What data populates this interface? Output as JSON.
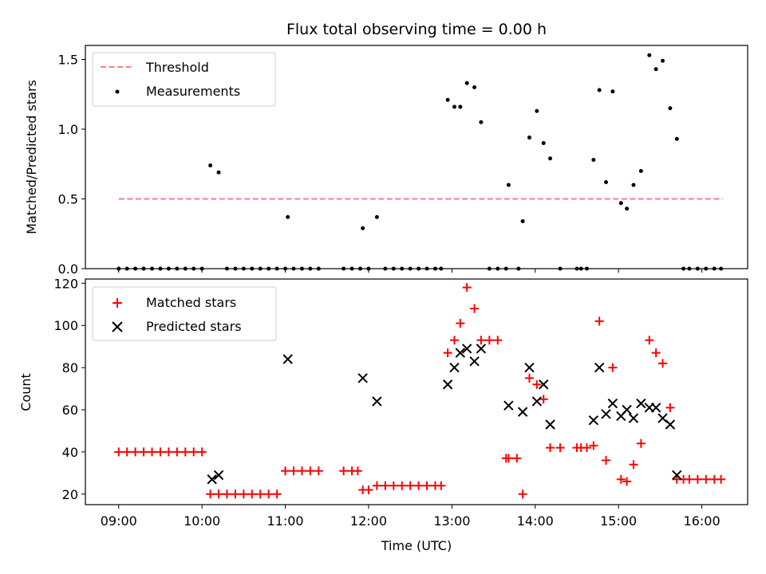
{
  "chart_data": [
    {
      "type": "scatter",
      "title": "Flux total observing time = 0.00 h",
      "xlabel": "",
      "ylabel": "Matched/Predicted stars",
      "xlim": [
        8.6,
        16.55
      ],
      "ylim": [
        0,
        1.6
      ],
      "yticks": [
        0.0,
        0.5,
        1.0,
        1.5
      ],
      "ytick_labels": [
        "0.0",
        "0.5",
        "1.0",
        "1.5"
      ],
      "legend_position": "top-left",
      "grid": false,
      "threshold": {
        "name": "Threshold",
        "value": 0.5,
        "x": [
          9.0,
          16.25
        ],
        "color": "#ff7f7f"
      },
      "series": [
        {
          "name": "Measurements",
          "color": "#000000",
          "marker": "dot",
          "x": [
            9.0,
            9.1,
            9.2,
            9.3,
            9.4,
            9.5,
            9.6,
            9.7,
            9.8,
            9.9,
            10.0,
            10.1,
            10.2,
            10.3,
            10.4,
            10.5,
            10.6,
            10.7,
            10.8,
            10.9,
            11.0,
            11.03,
            11.1,
            11.2,
            11.3,
            11.4,
            11.7,
            11.8,
            11.9,
            11.93,
            12.0,
            12.1,
            12.2,
            12.3,
            12.4,
            12.5,
            12.6,
            12.7,
            12.8,
            12.87,
            12.95,
            13.03,
            13.1,
            13.18,
            13.27,
            13.35,
            13.45,
            13.55,
            13.65,
            13.68,
            13.8,
            13.85,
            13.93,
            14.02,
            14.1,
            14.18,
            14.3,
            14.5,
            14.55,
            14.62,
            14.7,
            14.77,
            14.85,
            14.93,
            15.03,
            15.1,
            15.18,
            15.27,
            15.37,
            15.45,
            15.53,
            15.62,
            15.7,
            15.78,
            15.85,
            15.95,
            16.05,
            16.15,
            16.23
          ],
          "y": [
            0,
            0,
            0,
            0,
            0,
            0,
            0,
            0,
            0,
            0,
            0,
            0.74,
            0.69,
            0,
            0,
            0,
            0,
            0,
            0,
            0,
            0,
            0.37,
            0,
            0,
            0,
            0,
            0,
            0,
            0,
            0.29,
            0,
            0.37,
            0,
            0,
            0,
            0,
            0,
            0,
            0,
            0,
            1.21,
            1.16,
            1.16,
            1.33,
            1.3,
            1.05,
            0,
            0,
            0,
            0.6,
            0,
            0.34,
            0.94,
            1.13,
            0.9,
            0.79,
            0,
            0,
            0,
            0,
            0.78,
            1.28,
            0.62,
            1.27,
            0.47,
            0.43,
            0.6,
            0.7,
            1.53,
            1.43,
            1.49,
            1.15,
            0.93,
            0,
            0,
            0,
            0,
            0,
            0
          ]
        }
      ]
    },
    {
      "type": "scatter",
      "title": "",
      "xlabel": "Time (UTC)",
      "ylabel": "Count",
      "xlim": [
        8.6,
        16.55
      ],
      "ylim": [
        15,
        122
      ],
      "yticks": [
        20,
        40,
        60,
        80,
        100,
        120
      ],
      "ytick_labels": [
        "20",
        "40",
        "60",
        "80",
        "100",
        "120"
      ],
      "xticks": [
        9,
        10,
        11,
        12,
        13,
        14,
        15,
        16
      ],
      "xtick_labels": [
        "09:00",
        "10:00",
        "11:00",
        "12:00",
        "13:00",
        "14:00",
        "15:00",
        "16:00"
      ],
      "legend_position": "top-left",
      "grid": false,
      "series": [
        {
          "name": "Matched stars",
          "color": "#ff0000",
          "marker": "plus",
          "x": [
            9.0,
            9.1,
            9.2,
            9.3,
            9.4,
            9.5,
            9.6,
            9.7,
            9.8,
            9.9,
            10.0,
            10.1,
            10.2,
            10.3,
            10.4,
            10.5,
            10.6,
            10.7,
            10.8,
            10.9,
            11.0,
            11.1,
            11.2,
            11.3,
            11.4,
            11.7,
            11.8,
            11.87,
            11.93,
            12.0,
            12.1,
            12.2,
            12.3,
            12.4,
            12.5,
            12.6,
            12.7,
            12.8,
            12.87,
            12.95,
            13.03,
            13.1,
            13.18,
            13.27,
            13.35,
            13.45,
            13.55,
            13.65,
            13.68,
            13.78,
            13.85,
            13.93,
            14.02,
            14.1,
            14.18,
            14.3,
            14.5,
            14.55,
            14.62,
            14.7,
            14.77,
            14.85,
            14.93,
            15.03,
            15.1,
            15.18,
            15.27,
            15.37,
            15.45,
            15.53,
            15.62,
            15.7,
            15.78,
            15.85,
            15.95,
            16.05,
            16.15,
            16.23
          ],
          "y": [
            40,
            40,
            40,
            40,
            40,
            40,
            40,
            40,
            40,
            40,
            40,
            20,
            20,
            20,
            20,
            20,
            20,
            20,
            20,
            20,
            31,
            31,
            31,
            31,
            31,
            31,
            31,
            31,
            22,
            22,
            24,
            24,
            24,
            24,
            24,
            24,
            24,
            24,
            24,
            87,
            93,
            101,
            118,
            108,
            93,
            93,
            93,
            37,
            37,
            37,
            20,
            75,
            72,
            65,
            42,
            42,
            42,
            42,
            42,
            43,
            102,
            36,
            80,
            27,
            26,
            34,
            44,
            93,
            87,
            82,
            61,
            27,
            27,
            27,
            27,
            27,
            27,
            27
          ]
        },
        {
          "name": "Predicted stars",
          "color": "#000000",
          "marker": "x",
          "x": [
            10.12,
            10.2,
            11.03,
            11.93,
            12.1,
            12.95,
            13.03,
            13.1,
            13.18,
            13.27,
            13.35,
            13.68,
            13.85,
            13.93,
            14.02,
            14.1,
            14.18,
            14.7,
            14.77,
            14.85,
            14.93,
            15.03,
            15.1,
            15.18,
            15.27,
            15.37,
            15.45,
            15.53,
            15.62,
            15.7
          ],
          "y": [
            27,
            29,
            84,
            75,
            64,
            72,
            80,
            87,
            89,
            83,
            89,
            62,
            59,
            80,
            64,
            72,
            53,
            55,
            80,
            58,
            63,
            57,
            60,
            56,
            63,
            61,
            61,
            56,
            53,
            29
          ]
        }
      ]
    }
  ]
}
